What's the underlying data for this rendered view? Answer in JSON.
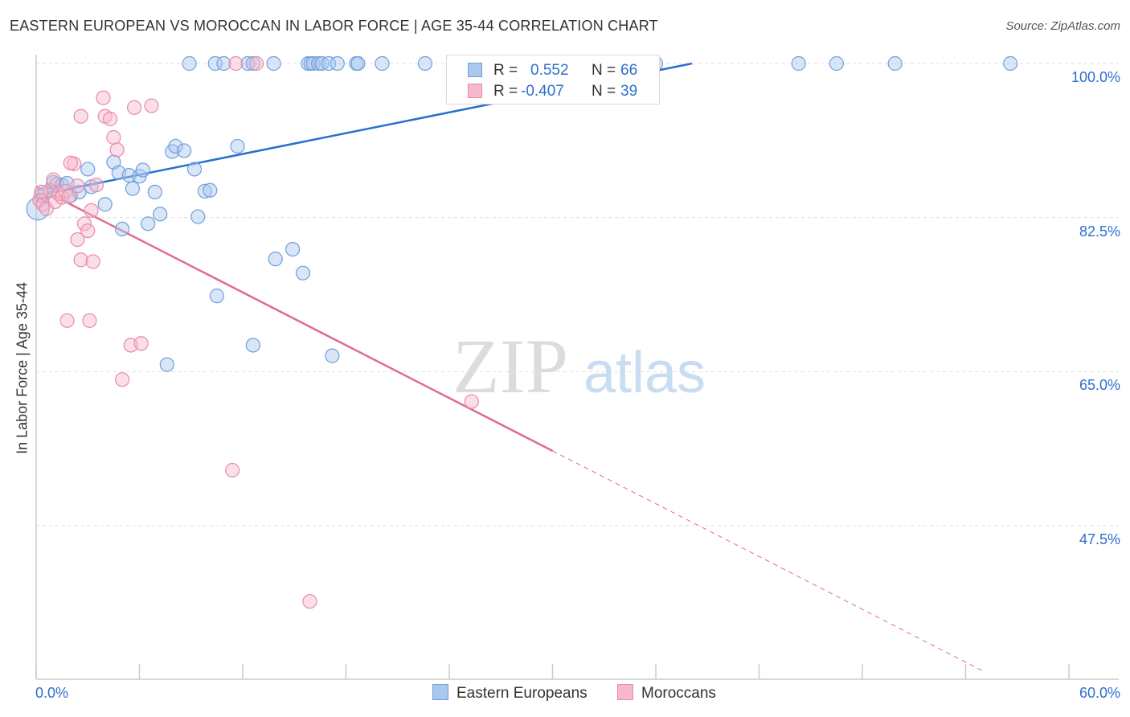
{
  "title": "EASTERN EUROPEAN VS MOROCCAN IN LABOR FORCE | AGE 35-44 CORRELATION CHART",
  "source": "Source: ZipAtlas.com",
  "watermark": {
    "zip": "ZIP",
    "atlas": "atlas"
  },
  "colors": {
    "blue_fill": "#a8c8ee",
    "blue_stroke": "#6f9fdc",
    "blue_line": "#2a6fcf",
    "blue_text": "#2f6fcc",
    "pink_fill": "#f6b8cb",
    "pink_stroke": "#ea8aa8",
    "pink_line": "#e06a96",
    "grid": "#dddddd",
    "axis": "#cccccc"
  },
  "stats": {
    "r_label": "R =",
    "n_label": "N =",
    "rows": [
      {
        "series": "Eastern Europeans",
        "r": "0.552",
        "n": "66"
      },
      {
        "series": "Moroccans",
        "r": "-0.407",
        "n": "39"
      }
    ]
  },
  "legend": {
    "items": [
      "Eastern Europeans",
      "Moroccans"
    ]
  },
  "chart_data": {
    "type": "scatter",
    "title": "EASTERN EUROPEAN VS MOROCCAN IN LABOR FORCE | AGE 35-44 CORRELATION CHART",
    "xlabel": "",
    "ylabel": "In Labor Force | Age 35-44",
    "xlim": [
      0,
      60
    ],
    "ylim": [
      31.5,
      101
    ],
    "x_tick_labels": [
      "0.0%",
      "60.0%"
    ],
    "y_ticks": [
      47.5,
      65.0,
      82.5,
      100.0
    ],
    "y_tick_labels": [
      "47.5%",
      "65.0%",
      "82.5%",
      "100.0%"
    ],
    "legend_position": "bottom",
    "series": [
      {
        "name": "Eastern Europeans",
        "r": 0.552,
        "n": 66,
        "trend": {
          "x": [
            0,
            38.1
          ],
          "y": [
            85.0,
            100.0
          ]
        },
        "points": [
          [
            0.1,
            83.5
          ],
          [
            0.3,
            85.0
          ],
          [
            0.5,
            85.2
          ],
          [
            0.8,
            85.6
          ],
          [
            1.0,
            86.5
          ],
          [
            1.2,
            86.3
          ],
          [
            1.5,
            86.2
          ],
          [
            1.8,
            86.4
          ],
          [
            2.0,
            85.0
          ],
          [
            2.5,
            85.4
          ],
          [
            3.0,
            88.0
          ],
          [
            3.2,
            86.0
          ],
          [
            4.0,
            84.0
          ],
          [
            4.5,
            88.8
          ],
          [
            4.8,
            87.6
          ],
          [
            5.0,
            81.2
          ],
          [
            5.4,
            87.3
          ],
          [
            5.6,
            85.8
          ],
          [
            6.0,
            87.2
          ],
          [
            6.2,
            87.9
          ],
          [
            6.5,
            81.8
          ],
          [
            6.9,
            85.4
          ],
          [
            7.2,
            82.9
          ],
          [
            7.6,
            65.8
          ],
          [
            7.9,
            90.0
          ],
          [
            8.1,
            90.6
          ],
          [
            8.6,
            90.1
          ],
          [
            9.2,
            88.0
          ],
          [
            9.4,
            82.6
          ],
          [
            9.8,
            85.5
          ],
          [
            10.1,
            85.6
          ],
          [
            10.5,
            73.6
          ],
          [
            11.7,
            90.6
          ],
          [
            12.6,
            68.0
          ],
          [
            13.9,
            77.8
          ],
          [
            14.9,
            78.9
          ],
          [
            15.5,
            76.2
          ],
          [
            17.2,
            66.8
          ],
          [
            8.9,
            100.0
          ],
          [
            10.4,
            100.0
          ],
          [
            10.9,
            100.0
          ],
          [
            12.3,
            100.0
          ],
          [
            12.6,
            100.0
          ],
          [
            13.8,
            100.0
          ],
          [
            15.8,
            100.0
          ],
          [
            15.95,
            100.0
          ],
          [
            16.1,
            100.0
          ],
          [
            16.4,
            100.0
          ],
          [
            16.6,
            100.0
          ],
          [
            17.0,
            100.0
          ],
          [
            17.5,
            100.0
          ],
          [
            18.6,
            100.0
          ],
          [
            18.7,
            100.0
          ],
          [
            20.1,
            100.0
          ],
          [
            22.6,
            100.0
          ],
          [
            25.7,
            100.0
          ],
          [
            28.2,
            100.0
          ],
          [
            30.2,
            100.0
          ],
          [
            31.2,
            100.0
          ],
          [
            32.1,
            100.0
          ],
          [
            35.6,
            100.0
          ],
          [
            36.0,
            100.0
          ],
          [
            44.3,
            100.0
          ],
          [
            46.5,
            100.0
          ],
          [
            49.9,
            100.0
          ],
          [
            56.6,
            100.0
          ]
        ]
      },
      {
        "name": "Moroccans",
        "r": -0.407,
        "n": 39,
        "trend": {
          "x": [
            0,
            30.0
          ],
          "y": [
            86.0,
            56.0
          ]
        },
        "trend_dashed": {
          "x": [
            30.0,
            55.0
          ],
          "y": [
            56.0,
            31.0
          ]
        },
        "points": [
          [
            0.2,
            84.5
          ],
          [
            0.4,
            84.0
          ],
          [
            0.6,
            83.5
          ],
          [
            0.8,
            85.6
          ],
          [
            1.0,
            86.8
          ],
          [
            1.1,
            84.3
          ],
          [
            1.3,
            85.2
          ],
          [
            1.5,
            84.8
          ],
          [
            1.7,
            85.5
          ],
          [
            1.9,
            84.9
          ],
          [
            2.2,
            88.6
          ],
          [
            2.4,
            80.0
          ],
          [
            2.6,
            77.7
          ],
          [
            2.8,
            81.8
          ],
          [
            3.0,
            81.0
          ],
          [
            3.2,
            83.3
          ],
          [
            3.5,
            86.2
          ],
          [
            1.8,
            70.8
          ],
          [
            2.6,
            94.0
          ],
          [
            3.1,
            70.8
          ],
          [
            3.3,
            77.5
          ],
          [
            3.9,
            96.1
          ],
          [
            4.0,
            94.0
          ],
          [
            4.3,
            93.7
          ],
          [
            4.5,
            91.6
          ],
          [
            4.7,
            90.2
          ],
          [
            5.0,
            64.1
          ],
          [
            5.5,
            68.0
          ],
          [
            5.7,
            95.0
          ],
          [
            6.1,
            68.2
          ],
          [
            6.7,
            95.2
          ],
          [
            2.0,
            88.7
          ],
          [
            11.4,
            53.8
          ],
          [
            11.6,
            100.0
          ],
          [
            12.8,
            100.0
          ],
          [
            15.9,
            38.9
          ],
          [
            25.3,
            61.6
          ],
          [
            0.3,
            85.4
          ],
          [
            2.4,
            86.1
          ]
        ]
      }
    ]
  }
}
